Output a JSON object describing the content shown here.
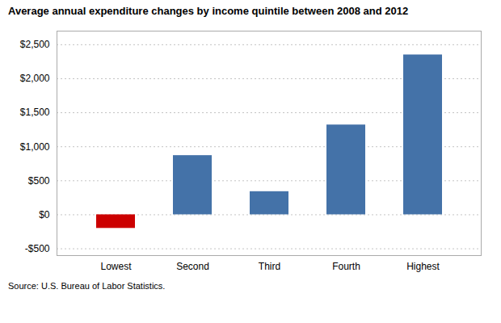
{
  "chart_data": {
    "type": "bar",
    "title": "Average annual expenditure changes by income quintile between 2008 and 2012",
    "categories": [
      "Lowest",
      "Second",
      "Third",
      "Fourth",
      "Highest"
    ],
    "values": [
      -200,
      870,
      340,
      1320,
      2350
    ],
    "colors": [
      "#cc0000",
      "#4472a8",
      "#4472a8",
      "#4472a8",
      "#4472a8"
    ],
    "ylim": [
      -600,
      2700
    ],
    "yticks": [
      {
        "value": -500,
        "label": "-$500"
      },
      {
        "value": 0,
        "label": "$0"
      },
      {
        "value": 500,
        "label": "$500"
      },
      {
        "value": 1000,
        "label": "$1,000"
      },
      {
        "value": 1500,
        "label": "$1,500"
      },
      {
        "value": 2000,
        "label": "$2,000"
      },
      {
        "value": 2500,
        "label": "$2,500"
      }
    ],
    "grid": true,
    "caption": "Source: U.S. Bureau of Labor Statistics."
  }
}
